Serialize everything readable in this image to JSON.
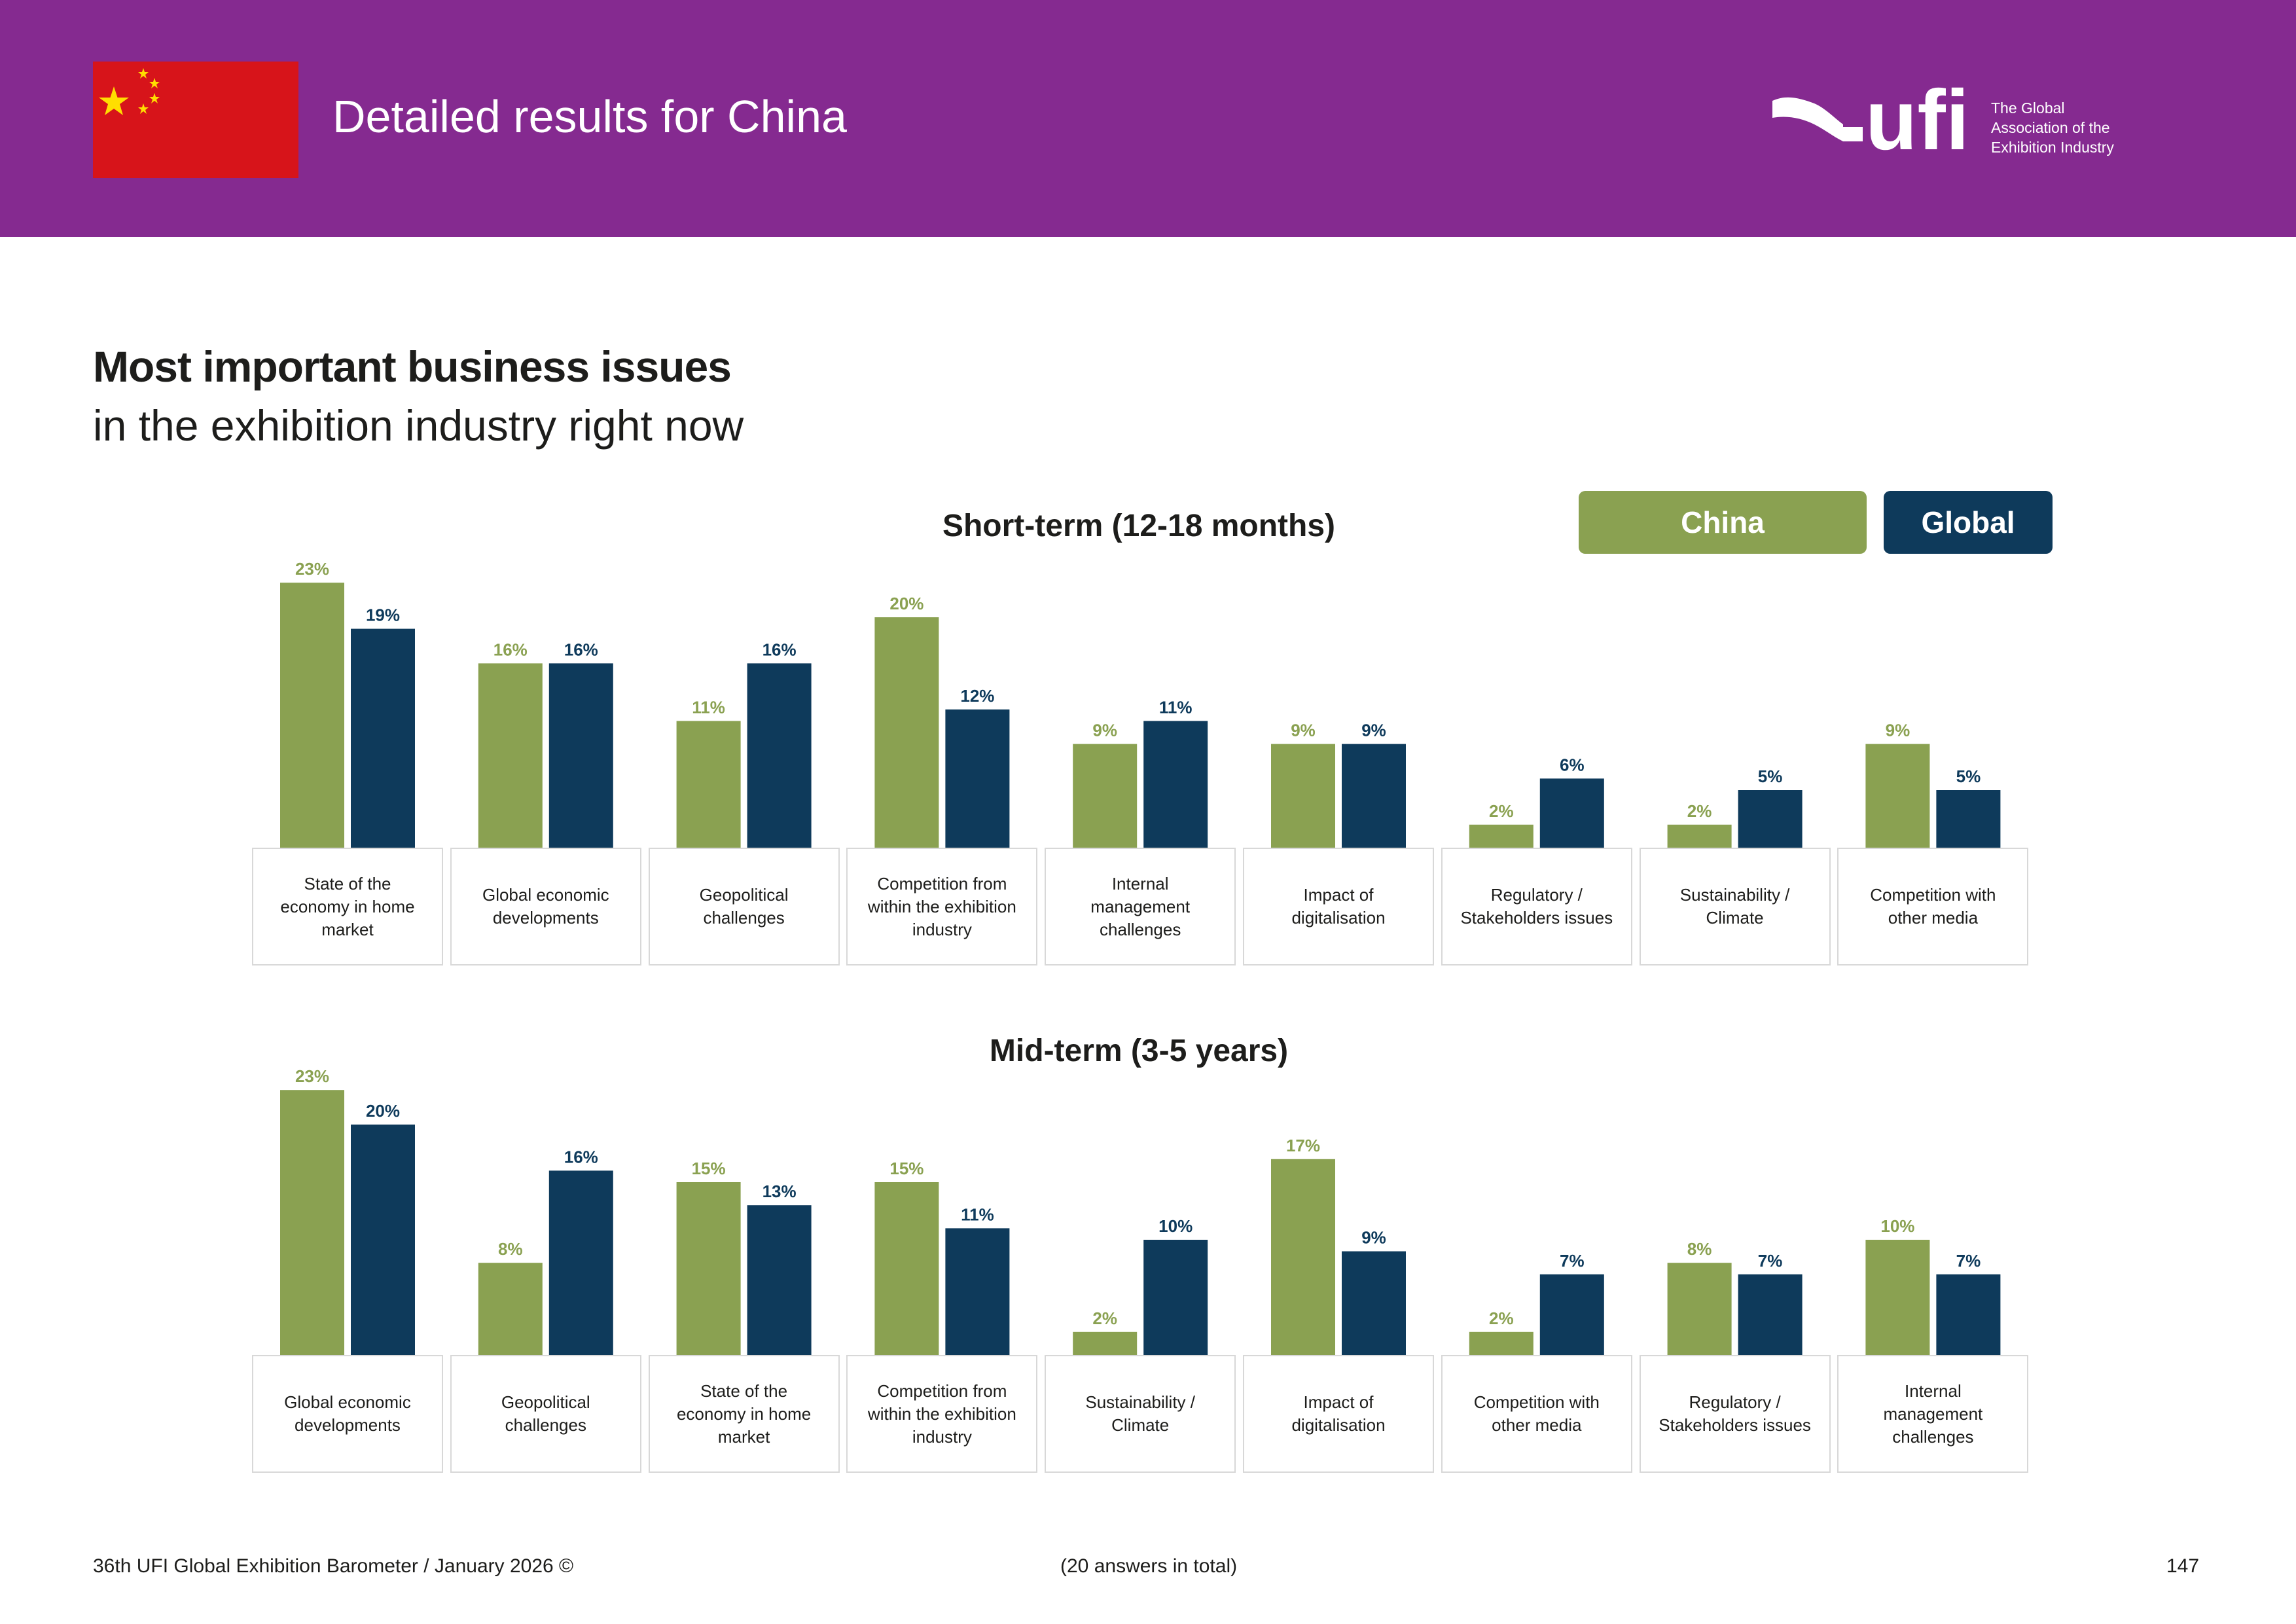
{
  "header": {
    "title": "Detailed results for China",
    "logo": {
      "wordmark": "ufi",
      "tagline": [
        "The Global",
        "Association of the",
        "Exhibition Industry"
      ]
    },
    "flag_icon": "china-flag"
  },
  "section": {
    "title_bold": "Most important business issues",
    "title_regular": "in the exhibition industry right now"
  },
  "legend": {
    "china": "China",
    "global": "Global"
  },
  "colors": {
    "china": "#8aa151",
    "global": "#0e3a5b",
    "header": "#852a90"
  },
  "chart_data": [
    {
      "type": "bar",
      "title": "Short-term (12-18 months)",
      "categories": [
        "State of the economy in home market",
        "Global economic developments",
        "Geopolitical challenges",
        "Competition from within the exhibition industry",
        "Internal management challenges",
        "Impact of digitalisation",
        "Regulatory / Stakeholders issues",
        "Sustainability / Climate",
        "Competition with other media"
      ],
      "series": [
        {
          "name": "China",
          "values": [
            23,
            16,
            11,
            20,
            9,
            9,
            2,
            2,
            9
          ]
        },
        {
          "name": "Global",
          "values": [
            19,
            16,
            16,
            12,
            11,
            9,
            6,
            5,
            5
          ]
        }
      ],
      "unit": "%",
      "ylim": [
        0,
        25
      ]
    },
    {
      "type": "bar",
      "title": "Mid-term (3-5 years)",
      "categories": [
        "Global economic developments",
        "Geopolitical challenges",
        "State of the economy in home market",
        "Competition from within the exhibition industry",
        "Sustainability / Climate",
        "Impact of digitalisation",
        "Competition with other media",
        "Regulatory / Stakeholders issues",
        "Internal management challenges"
      ],
      "series": [
        {
          "name": "China",
          "values": [
            23,
            8,
            15,
            15,
            2,
            17,
            2,
            8,
            10
          ]
        },
        {
          "name": "Global",
          "values": [
            20,
            16,
            13,
            11,
            10,
            9,
            7,
            7,
            7
          ]
        }
      ],
      "unit": "%",
      "ylim": [
        0,
        25
      ]
    }
  ],
  "footer": {
    "left": "36th UFI Global Exhibition Barometer / January 2026 ©",
    "center": "(20 answers in total)",
    "page": "147"
  }
}
